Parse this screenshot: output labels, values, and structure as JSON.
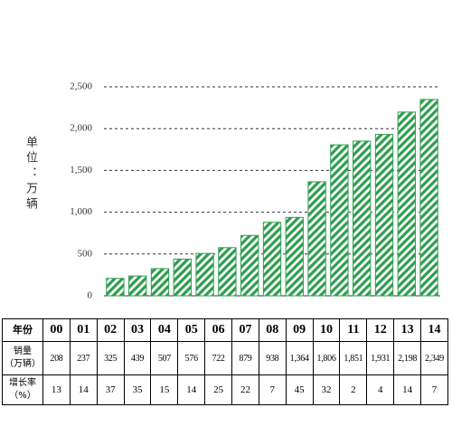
{
  "chart_data": {
    "type": "bar",
    "y_label": "单位：万辆",
    "categories": [
      "00",
      "01",
      "02",
      "03",
      "04",
      "05",
      "06",
      "07",
      "08",
      "09",
      "10",
      "11",
      "12",
      "13",
      "14"
    ],
    "values": [
      208,
      237,
      325,
      439,
      507,
      576,
      722,
      879,
      938,
      1364,
      1806,
      1851,
      1931,
      2198,
      2349
    ],
    "value_labels": [
      "208",
      "237",
      "325",
      "439",
      "507",
      "576",
      "722",
      "879",
      "938",
      "1,364",
      "1,806",
      "1,851",
      "1,931",
      "2,198",
      "2,349"
    ],
    "color": "#2e9e4f",
    "ylim": [
      0,
      2500
    ],
    "yticks": [
      0,
      500,
      {
        "value": 1000,
        "label": "1,000"
      },
      {
        "value": 1500,
        "label": "1,500"
      },
      {
        "value": 2000,
        "label": "2,000"
      },
      {
        "value": 2500,
        "label": "2,500"
      }
    ],
    "grid": true
  },
  "table": {
    "year_header": "年份",
    "sales_header": [
      "销量",
      "（万辆）"
    ],
    "growth_header": [
      "增长率",
      "（%）"
    ],
    "growth": [
      13,
      14,
      37,
      35,
      15,
      14,
      25,
      22,
      7,
      45,
      32,
      2,
      4,
      14,
      7
    ]
  }
}
